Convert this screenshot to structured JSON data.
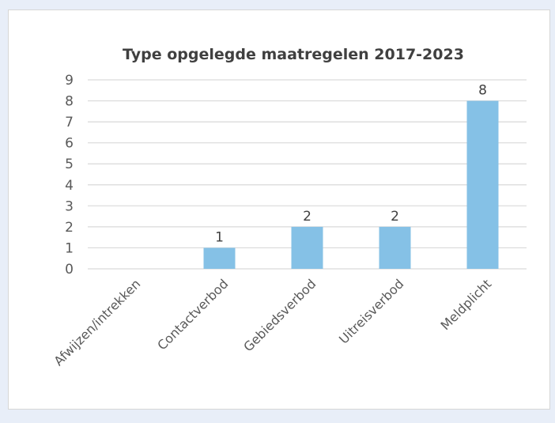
{
  "chart_data": {
    "type": "bar",
    "title": "Type opgelegde maatregelen 2017-2023",
    "xlabel": "",
    "ylabel": "",
    "categories": [
      "Afwijzen/intrekken",
      "Contactverbod",
      "Gebiedsverbod",
      "Uitreisverbod",
      "Meldplicht"
    ],
    "values": [
      0,
      1,
      2,
      2,
      8
    ],
    "data_labels": [
      "",
      "1",
      "2",
      "2",
      "8"
    ],
    "ylim": [
      0,
      9
    ],
    "yticks": [
      "0",
      "1",
      "2",
      "3",
      "4",
      "5",
      "6",
      "7",
      "8",
      "9"
    ],
    "grid": true,
    "legend": "none",
    "bar_color": "#85c1e6",
    "grid_color": "#d9d9d9",
    "text_color": "#595959"
  }
}
